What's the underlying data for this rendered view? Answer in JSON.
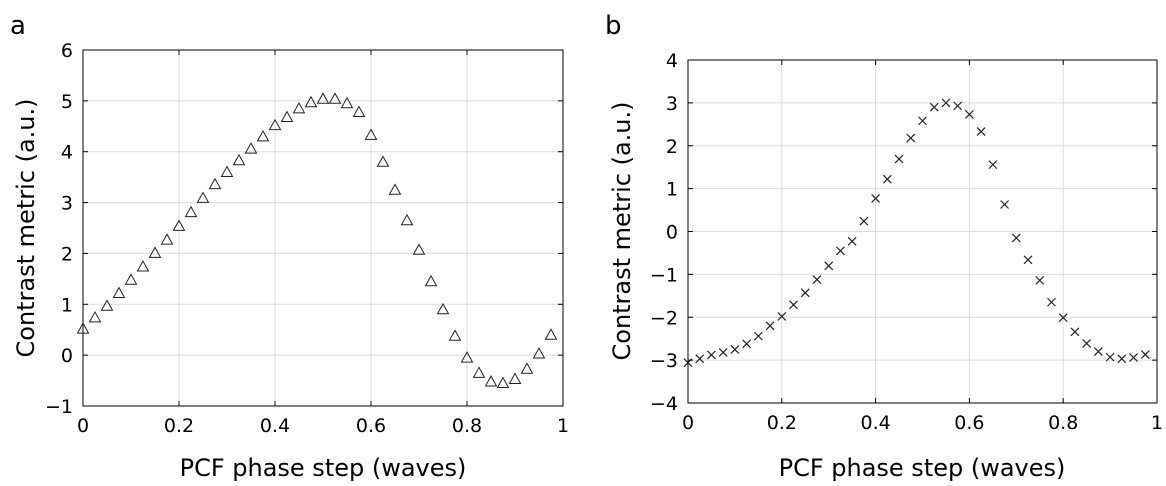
{
  "chart_data": [
    {
      "panel_label": "a",
      "type": "scatter",
      "marker": "triangle",
      "xlabel": "PCF phase step (waves)",
      "ylabel": "Contrast metric (a.u.)",
      "xlim": [
        0,
        1
      ],
      "ylim": [
        -1,
        6
      ],
      "xticks": [
        0,
        0.2,
        0.4,
        0.6,
        0.8,
        1
      ],
      "xtick_labels": [
        "0",
        "0.2",
        "0.4",
        "0.6",
        "0.8",
        "1"
      ],
      "yticks": [
        -1,
        0,
        1,
        2,
        3,
        4,
        5,
        6
      ],
      "ytick_labels": [
        "−1",
        "0",
        "1",
        "2",
        "3",
        "4",
        "5",
        "6"
      ],
      "grid": true,
      "x": [
        0,
        0.025,
        0.05,
        0.075,
        0.1,
        0.125,
        0.15,
        0.175,
        0.2,
        0.225,
        0.25,
        0.275,
        0.3,
        0.325,
        0.35,
        0.375,
        0.4,
        0.425,
        0.45,
        0.475,
        0.5,
        0.525,
        0.55,
        0.575,
        0.6,
        0.625,
        0.65,
        0.675,
        0.7,
        0.725,
        0.75,
        0.775,
        0.8,
        0.825,
        0.85,
        0.875,
        0.9,
        0.925,
        0.95,
        0.975
      ],
      "y": [
        0.52,
        0.74,
        0.97,
        1.22,
        1.48,
        1.74,
        2.01,
        2.27,
        2.54,
        2.81,
        3.09,
        3.36,
        3.6,
        3.83,
        4.06,
        4.3,
        4.52,
        4.68,
        4.85,
        4.97,
        5.04,
        5.04,
        4.95,
        4.78,
        4.33,
        3.8,
        3.25,
        2.65,
        2.07,
        1.45,
        0.9,
        0.38,
        -0.05,
        -0.35,
        -0.52,
        -0.55,
        -0.47,
        -0.27,
        0.03,
        0.4
      ]
    },
    {
      "panel_label": "b",
      "type": "scatter",
      "marker": "x",
      "xlabel": "PCF phase step (waves)",
      "ylabel": "Contrast metric (a.u.)",
      "xlim": [
        0,
        1
      ],
      "ylim": [
        -4,
        4
      ],
      "xticks": [
        0,
        0.2,
        0.4,
        0.6,
        0.8,
        1
      ],
      "xtick_labels": [
        "0",
        "0.2",
        "0.4",
        "0.6",
        "0.8",
        "1"
      ],
      "yticks": [
        -4,
        -3,
        -2,
        -1,
        0,
        1,
        2,
        3,
        4
      ],
      "ytick_labels": [
        "−4",
        "−3",
        "−2",
        "−1",
        "0",
        "1",
        "2",
        "3",
        "4"
      ],
      "grid": true,
      "x": [
        0,
        0.025,
        0.05,
        0.075,
        0.1,
        0.125,
        0.15,
        0.175,
        0.2,
        0.225,
        0.25,
        0.275,
        0.3,
        0.325,
        0.35,
        0.375,
        0.4,
        0.425,
        0.45,
        0.475,
        0.5,
        0.525,
        0.55,
        0.575,
        0.6,
        0.625,
        0.65,
        0.675,
        0.7,
        0.725,
        0.75,
        0.775,
        0.8,
        0.825,
        0.85,
        0.875,
        0.9,
        0.925,
        0.95,
        0.975
      ],
      "y": [
        -3.06,
        -2.97,
        -2.88,
        -2.82,
        -2.75,
        -2.62,
        -2.44,
        -2.2,
        -1.98,
        -1.71,
        -1.43,
        -1.12,
        -0.8,
        -0.45,
        -0.23,
        0.24,
        0.77,
        1.22,
        1.69,
        2.18,
        2.58,
        2.9,
        3.0,
        2.93,
        2.73,
        2.33,
        1.56,
        0.63,
        -0.15,
        -0.66,
        -1.14,
        -1.65,
        -2.01,
        -2.34,
        -2.61,
        -2.8,
        -2.93,
        -2.97,
        -2.94,
        -2.87
      ]
    }
  ]
}
